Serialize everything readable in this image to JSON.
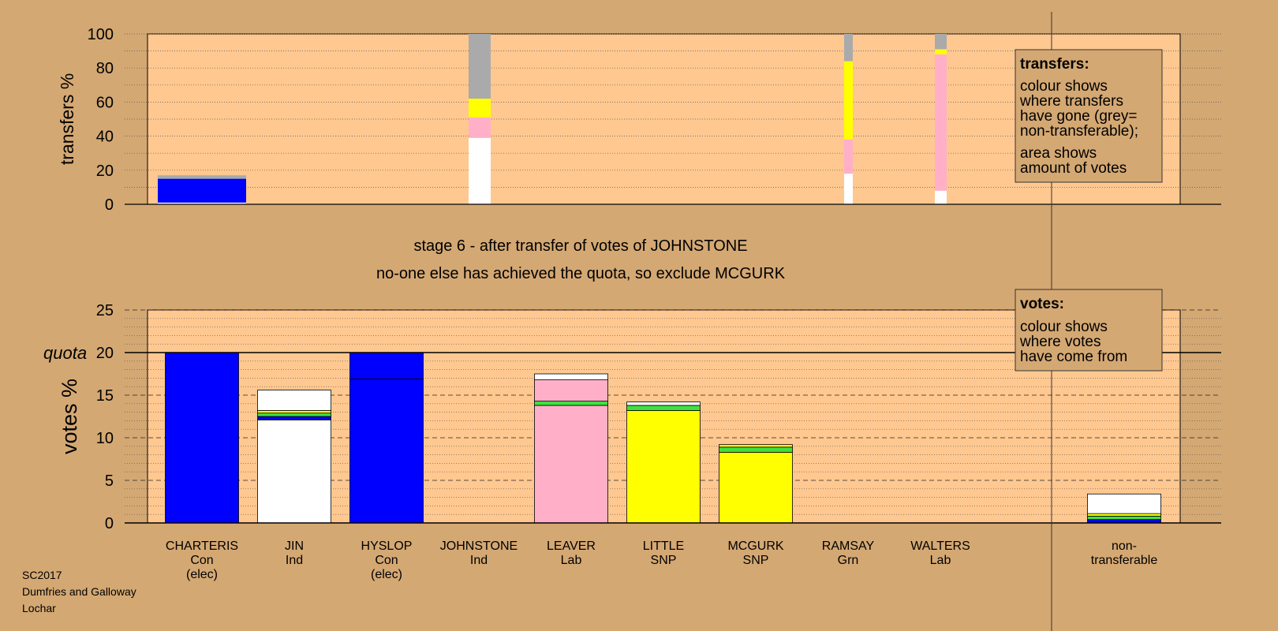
{
  "title_line1": "stage 6 - after transfer of votes of JOHNSTONE",
  "title_line2": "no-one else has achieved the quota, so exclude MCGURK",
  "footer": [
    "SC2017",
    "Dumfries and Galloway",
    "Lochar"
  ],
  "quota_label": "quota",
  "transfers_legend": {
    "heading": "transfers:",
    "lines1": [
      "colour shows",
      "where transfers",
      "have gone (grey=",
      "non-transferable);"
    ],
    "lines2": [
      "area shows",
      "amount of votes"
    ]
  },
  "votes_legend": {
    "heading": "votes:",
    "lines": [
      "colour shows",
      "where votes",
      "have come from"
    ]
  },
  "colors": {
    "Con": "#0000ff",
    "Ind": "#ffffff",
    "Lab": "#ffb0c8",
    "SNP": "#ffff00",
    "Grn": "#40e040",
    "nontransferable": "#aaaaaa",
    "background": "#d4a873",
    "plot": "#ffc890"
  },
  "chart_data": [
    {
      "type": "bar",
      "name": "transfers",
      "ylabel": "transfers %",
      "ylim": [
        0,
        100
      ],
      "yticks": [
        0,
        20,
        40,
        60,
        80,
        100
      ],
      "grid": true,
      "columns": [
        {
          "candidate": "CHARTERIS",
          "segments": [
            {
              "from": 0,
              "to": 1,
              "color": "Ind"
            },
            {
              "from": 1,
              "to": 15,
              "color": "Con"
            },
            {
              "from": 15,
              "to": 17,
              "color": "nontransferable"
            }
          ],
          "width_share": 1.0
        },
        {
          "candidate": "JOHNSTONE",
          "segments": [
            {
              "from": 0,
              "to": 39,
              "color": "Ind"
            },
            {
              "from": 39,
              "to": 51,
              "color": "Lab"
            },
            {
              "from": 51,
              "to": 62,
              "color": "SNP"
            },
            {
              "from": 62,
              "to": 100,
              "color": "nontransferable"
            }
          ],
          "width_share": 0.25
        },
        {
          "candidate": "RAMSAY",
          "segments": [
            {
              "from": 0,
              "to": 18,
              "color": "Ind"
            },
            {
              "from": 18,
              "to": 38,
              "color": "Lab"
            },
            {
              "from": 38,
              "to": 84,
              "color": "SNP"
            },
            {
              "from": 84,
              "to": 100,
              "color": "nontransferable"
            }
          ],
          "width_share": 0.1
        },
        {
          "candidate": "WALTERS",
          "segments": [
            {
              "from": 0,
              "to": 8,
              "color": "Ind"
            },
            {
              "from": 8,
              "to": 88,
              "color": "Lab"
            },
            {
              "from": 88,
              "to": 91,
              "color": "SNP"
            },
            {
              "from": 91,
              "to": 100,
              "color": "nontransferable"
            }
          ],
          "width_share": 0.13
        }
      ]
    },
    {
      "type": "bar",
      "name": "votes",
      "ylabel": "votes %",
      "ylim": [
        0,
        25
      ],
      "yticks": [
        0,
        5,
        10,
        15,
        20,
        25
      ],
      "quota": 20,
      "grid": true,
      "categories": [
        {
          "name": "CHARTERIS",
          "party": "Con",
          "elected": "(elec)",
          "segments": [
            {
              "to": 20.0,
              "color": "Con"
            }
          ]
        },
        {
          "name": "JIN",
          "party": "Ind",
          "elected": "",
          "segments": [
            {
              "to": 12.1,
              "color": "Ind"
            },
            {
              "to": 12.5,
              "color": "Con"
            },
            {
              "to": 12.9,
              "color": "Grn"
            },
            {
              "to": 13.2,
              "color": "SNP"
            },
            {
              "to": 15.6,
              "color": "Ind"
            }
          ]
        },
        {
          "name": "HYSLOP",
          "party": "Con",
          "elected": "(elec)",
          "segments": [
            {
              "to": 16.9,
              "color": "Con"
            },
            {
              "to": 20.0,
              "color": "Con"
            }
          ]
        },
        {
          "name": "JOHNSTONE",
          "party": "Ind",
          "elected": "",
          "segments": []
        },
        {
          "name": "LEAVER",
          "party": "Lab",
          "elected": "",
          "segments": [
            {
              "to": 13.8,
              "color": "Lab"
            },
            {
              "to": 14.3,
              "color": "Grn"
            },
            {
              "to": 16.8,
              "color": "Lab"
            },
            {
              "to": 17.5,
              "color": "Ind"
            }
          ]
        },
        {
          "name": "LITTLE",
          "party": "SNP",
          "elected": "",
          "segments": [
            {
              "to": 13.2,
              "color": "SNP"
            },
            {
              "to": 13.8,
              "color": "Grn"
            },
            {
              "to": 14.2,
              "color": "Ind"
            }
          ]
        },
        {
          "name": "MCGURK",
          "party": "SNP",
          "elected": "",
          "segments": [
            {
              "to": 8.3,
              "color": "SNP"
            },
            {
              "to": 8.9,
              "color": "Grn"
            },
            {
              "to": 9.2,
              "color": "SNP"
            }
          ]
        },
        {
          "name": "RAMSAY",
          "party": "Grn",
          "elected": "",
          "segments": []
        },
        {
          "name": "WALTERS",
          "party": "Lab",
          "elected": "",
          "segments": []
        },
        {
          "name": "non-\ntransferable",
          "party": "",
          "elected": "",
          "segments": [
            {
              "to": 0.4,
              "color": "Con"
            },
            {
              "to": 0.8,
              "color": "Grn"
            },
            {
              "to": 1.1,
              "color": "SNP"
            },
            {
              "to": 3.4,
              "color": "Ind"
            }
          ]
        }
      ]
    }
  ]
}
